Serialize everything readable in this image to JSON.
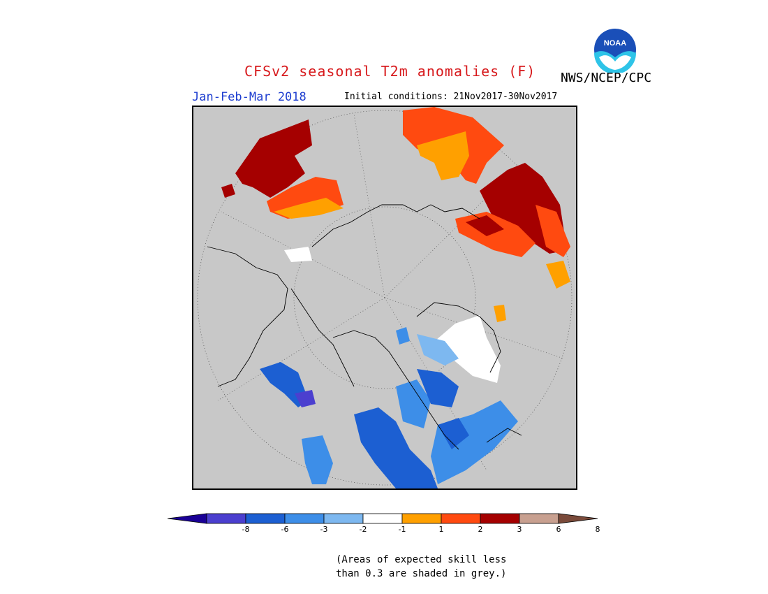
{
  "title": "CFSv2 seasonal T2m anomalies (F)",
  "agency": "NWS/NCEP/CPC",
  "logo_text": "NOAA",
  "season": "Jan-Feb-Mar 2018",
  "initial_conditions": "Initial conditions: 21Nov2017-30Nov2017",
  "colors": {
    "title": "#d7191c",
    "season": "#1f3fd0",
    "skill_mask": "#c8c8c8"
  },
  "colorbar": {
    "ticks": [
      "-8",
      "-6",
      "-3",
      "-2",
      "-1",
      "1",
      "2",
      "3",
      "6",
      "8"
    ],
    "colors": [
      "#1a0096",
      "#4b3fcf",
      "#1c5fd2",
      "#3d8ee8",
      "#7db8f0",
      "#ffffff",
      "#ffa000",
      "#ff4a10",
      "#a50000",
      "#c8a090",
      "#7a4a3a"
    ]
  },
  "note": {
    "line1": "(Areas of expected skill less",
    "line2": "than 0.3 are shaded in grey.)"
  }
}
